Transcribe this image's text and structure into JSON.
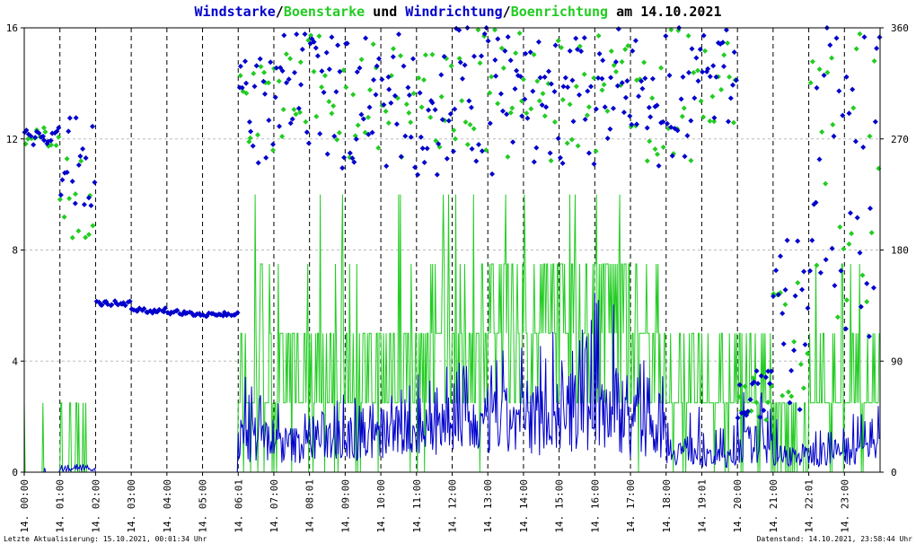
{
  "chart_data": {
    "type": "line",
    "title_parts": [
      {
        "text": "Windstarke",
        "color": "#0000cc"
      },
      {
        "text": "/",
        "color": "#000000"
      },
      {
        "text": "Boenstarke",
        "color": "#22cc22"
      },
      {
        "text": " und ",
        "color": "#000000"
      },
      {
        "text": "Windrichtung",
        "color": "#0000cc"
      },
      {
        "text": "/",
        "color": "#000000"
      },
      {
        "text": "Boenrichtung",
        "color": "#22cc22"
      },
      {
        "text": " am 14.10.2021",
        "color": "#000000"
      }
    ],
    "y_left": {
      "ticks": [
        "0",
        "4",
        "8",
        "12",
        "16"
      ],
      "range": [
        0,
        16
      ]
    },
    "y_right": {
      "ticks": [
        "0",
        "90",
        "180",
        "270",
        "360"
      ],
      "range": [
        0,
        360
      ]
    },
    "x_ticks": [
      "14. 00:00",
      "14. 01:00",
      "14. 02:00",
      "14. 03:00",
      "14. 04:00",
      "14. 05:00",
      "14. 06:01",
      "14. 07:00",
      "14. 08:01",
      "14. 09:00",
      "14. 10:00",
      "14. 11:00",
      "14. 12:00",
      "14. 13:00",
      "14. 14:00",
      "14. 15:00",
      "14. 16:00",
      "14. 17:00",
      "14. 18:00",
      "14. 19:01",
      "14. 20:00",
      "14. 21:00",
      "14. 22:01",
      "14. 23:00"
    ],
    "x_range_hours": [
      0,
      24
    ],
    "grid": true,
    "colors": {
      "wind": "#0000cc",
      "gust": "#22cc22",
      "axis_bg": "#ffffff"
    },
    "series": [
      {
        "name": "Windstarke",
        "kind": "speed",
        "color": "#0000cc",
        "hourly_max": [
          0.2,
          0.3,
          0,
          0,
          0,
          0,
          3.5,
          2.8,
          3.2,
          3.0,
          3.4,
          3.8,
          4.1,
          4.6,
          5.2,
          5.6,
          7.0,
          4.8,
          2.5,
          1.8,
          3.0,
          2.0,
          2.0,
          2.4
        ],
        "hourly_typical": [
          0,
          0.1,
          0,
          0,
          0,
          0,
          1.2,
          1.0,
          1.3,
          1.2,
          1.4,
          1.5,
          1.6,
          1.8,
          2.0,
          2.1,
          2.3,
          1.7,
          0.8,
          0.5,
          1.0,
          0.6,
          0.7,
          0.8
        ]
      },
      {
        "name": "Boenstarke",
        "kind": "gust",
        "color": "#22cc22",
        "hourly_max": [
          2.5,
          2.5,
          0,
          0,
          0,
          0,
          10.0,
          10.0,
          10.0,
          7.5,
          10.0,
          10.0,
          10.0,
          10.0,
          10.0,
          10.0,
          10.0,
          7.5,
          5.0,
          5.0,
          5.0,
          2.5,
          7.5,
          7.5
        ],
        "hourly_typical": [
          0,
          0,
          0,
          0,
          0,
          0,
          2.5,
          3.0,
          3.2,
          3.0,
          3.4,
          3.6,
          4.0,
          4.5,
          4.7,
          5.0,
          5.2,
          3.8,
          2.5,
          2.5,
          2.5,
          1.0,
          2.5,
          2.5
        ]
      },
      {
        "name": "Windrichtung",
        "kind": "direction",
        "color": "#0000cc",
        "hourly_mean_deg": [
          272,
          250,
          137,
          131,
          129,
          128,
          290,
          305,
          300,
          305,
          300,
          295,
          305,
          300,
          300,
          300,
          305,
          300,
          310,
          320,
          62,
          120,
          250,
          240
        ],
        "hourly_spread_deg": [
          8,
          40,
          2,
          2,
          2,
          2,
          45,
          50,
          55,
          55,
          55,
          60,
          60,
          60,
          55,
          55,
          55,
          55,
          60,
          40,
          20,
          70,
          120,
          130
        ]
      },
      {
        "name": "Boenrichtung",
        "kind": "direction",
        "color": "#22cc22",
        "hourly_mean_deg": [
          272,
          230,
          0,
          0,
          0,
          0,
          295,
          305,
          305,
          305,
          300,
          300,
          305,
          305,
          300,
          300,
          305,
          300,
          305,
          315,
          60,
          100,
          230,
          250
        ],
        "hourly_spread_deg": [
          8,
          40,
          0,
          0,
          0,
          0,
          35,
          45,
          50,
          50,
          50,
          50,
          55,
          55,
          50,
          50,
          50,
          50,
          55,
          35,
          20,
          60,
          110,
          120
        ]
      }
    ]
  },
  "footer": {
    "left": "Letzte Aktualisierung: 15.10.2021, 00:01:34 Uhr",
    "right": "Datenstand: 14.10.2021, 23:58:44 Uhr"
  }
}
